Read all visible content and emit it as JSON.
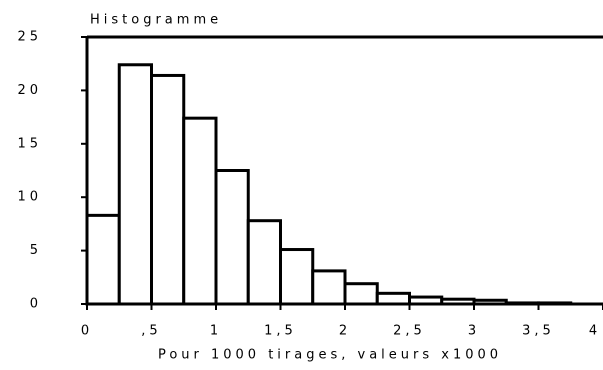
{
  "chart_data": {
    "type": "histogram",
    "title": "Histogramme",
    "x_label": "Pour 1000 tirages, valeurs x1000",
    "bins": [
      0,
      0.25,
      0.5,
      0.75,
      1,
      1.25,
      1.5,
      1.75,
      2,
      2.25,
      2.5,
      2.75,
      3,
      3.25,
      3.5,
      3.75
    ],
    "values": [
      8.3,
      22.4,
      21.4,
      17.4,
      12.5,
      7.8,
      5.1,
      3.1,
      1.9,
      1.0,
      0.65,
      0.45,
      0.35,
      0.1,
      0.1
    ],
    "color": "#ffffff",
    "xlim": [
      0,
      4
    ],
    "xticks": [
      0,
      {
        "value": 0.5,
        "label": ",5"
      },
      1,
      {
        "value": 1.5,
        "label": "1,5"
      },
      2,
      {
        "value": 2.5,
        "label": "2,5"
      },
      3,
      {
        "value": 3.5,
        "label": "3,5"
      },
      4
    ],
    "ylim": [
      0,
      25
    ],
    "yticks": [
      0,
      5,
      10,
      15,
      20,
      25
    ]
  }
}
